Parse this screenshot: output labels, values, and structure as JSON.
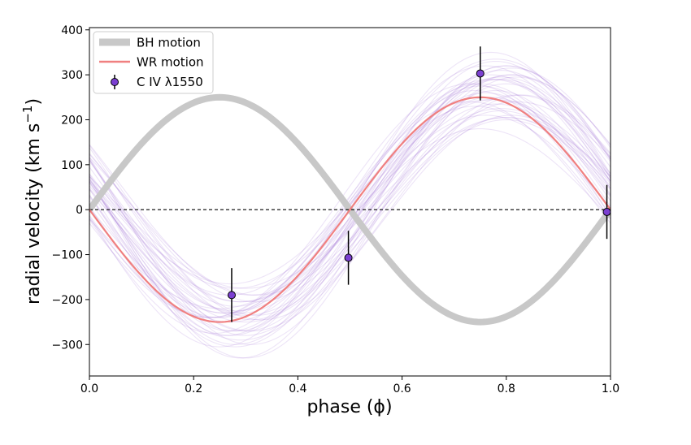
{
  "chart_data": {
    "type": "line",
    "xlabel": "phase (ϕ)",
    "ylabel_main": "radial velocity (km s",
    "ylabel_sup": "−1",
    "ylabel_close": ")",
    "xlim": [
      0.0,
      1.0
    ],
    "ylim": [
      -370,
      405
    ],
    "xticks": [
      0.0,
      0.2,
      0.4,
      0.6,
      0.8,
      1.0
    ],
    "xtick_labels": [
      "0.0",
      "0.2",
      "0.4",
      "0.6",
      "0.8",
      "1.0"
    ],
    "yticks": [
      -300,
      -200,
      -100,
      0,
      100,
      200,
      300,
      400
    ],
    "ytick_labels": [
      "−300",
      "−200",
      "−100",
      "0",
      "100",
      "200",
      "300",
      "400"
    ],
    "grid": false,
    "legend_position": "top-left",
    "legend": [
      {
        "label": "BH motion",
        "kind": "thick-line",
        "color": "#c8c8c8"
      },
      {
        "label": "WR motion",
        "kind": "line",
        "color": "#f08080"
      },
      {
        "label": "C IV λ1550",
        "kind": "errorbar-point",
        "color": "#7b3fd1"
      }
    ],
    "series": [
      {
        "name": "BH motion",
        "model": "K*sin(2πϕ)",
        "K": 250,
        "color": "#c8c8c8"
      },
      {
        "name": "WR motion",
        "model": "-K*sin(2πϕ)",
        "K": 250,
        "color": "#f08080"
      },
      {
        "name": "C IV λ1550",
        "color": "#7b3fd1",
        "points": [
          {
            "x": 0.273,
            "y": -190,
            "yerr": 60
          },
          {
            "x": 0.497,
            "y": -107,
            "yerr": 60
          },
          {
            "x": 0.75,
            "y": 303,
            "yerr": 60
          },
          {
            "x": 0.993,
            "y": -5,
            "yerr": 60
          }
        ]
      }
    ],
    "posterior_samples": {
      "color": "#9b6bd4",
      "opacity": 0.18,
      "model": "-K*sin(2π(ϕ-phi0)) + gamma",
      "params": [
        [
          250,
          0.02,
          0
        ],
        [
          280,
          0.03,
          10
        ],
        [
          220,
          0.01,
          -10
        ],
        [
          300,
          0.05,
          20
        ],
        [
          200,
          0.0,
          -20
        ],
        [
          260,
          0.04,
          30
        ],
        [
          240,
          0.06,
          -30
        ],
        [
          310,
          0.02,
          40
        ],
        [
          190,
          0.05,
          15
        ],
        [
          270,
          -0.01,
          -5
        ],
        [
          230,
          0.07,
          25
        ],
        [
          290,
          0.0,
          -15
        ],
        [
          210,
          0.03,
          35
        ],
        [
          320,
          0.04,
          -10
        ],
        [
          250,
          0.08,
          5
        ],
        [
          275,
          0.01,
          45
        ],
        [
          225,
          0.05,
          -25
        ],
        [
          260,
          -0.02,
          20
        ],
        [
          300,
          0.06,
          0
        ],
        [
          240,
          0.02,
          50
        ],
        [
          285,
          0.03,
          -20
        ],
        [
          215,
          0.04,
          10
        ],
        [
          265,
          0.07,
          30
        ],
        [
          235,
          -0.01,
          -5
        ],
        [
          295,
          0.05,
          25
        ],
        [
          205,
          0.02,
          40
        ],
        [
          255,
          0.04,
          -35
        ],
        [
          315,
          0.03,
          15
        ],
        [
          245,
          0.06,
          55
        ],
        [
          270,
          0.01,
          -10
        ],
        [
          230,
          0.03,
          5
        ],
        [
          280,
          0.06,
          35
        ],
        [
          260,
          0.0,
          20
        ],
        [
          220,
          0.05,
          -15
        ],
        [
          290,
          0.02,
          10
        ],
        [
          250,
          0.04,
          45
        ],
        [
          240,
          -0.02,
          0
        ],
        [
          305,
          0.05,
          -25
        ],
        [
          215,
          0.07,
          25
        ],
        [
          275,
          0.03,
          60
        ]
      ]
    },
    "reference_line": {
      "y": 0,
      "style": "dashed",
      "color": "#000000"
    }
  }
}
